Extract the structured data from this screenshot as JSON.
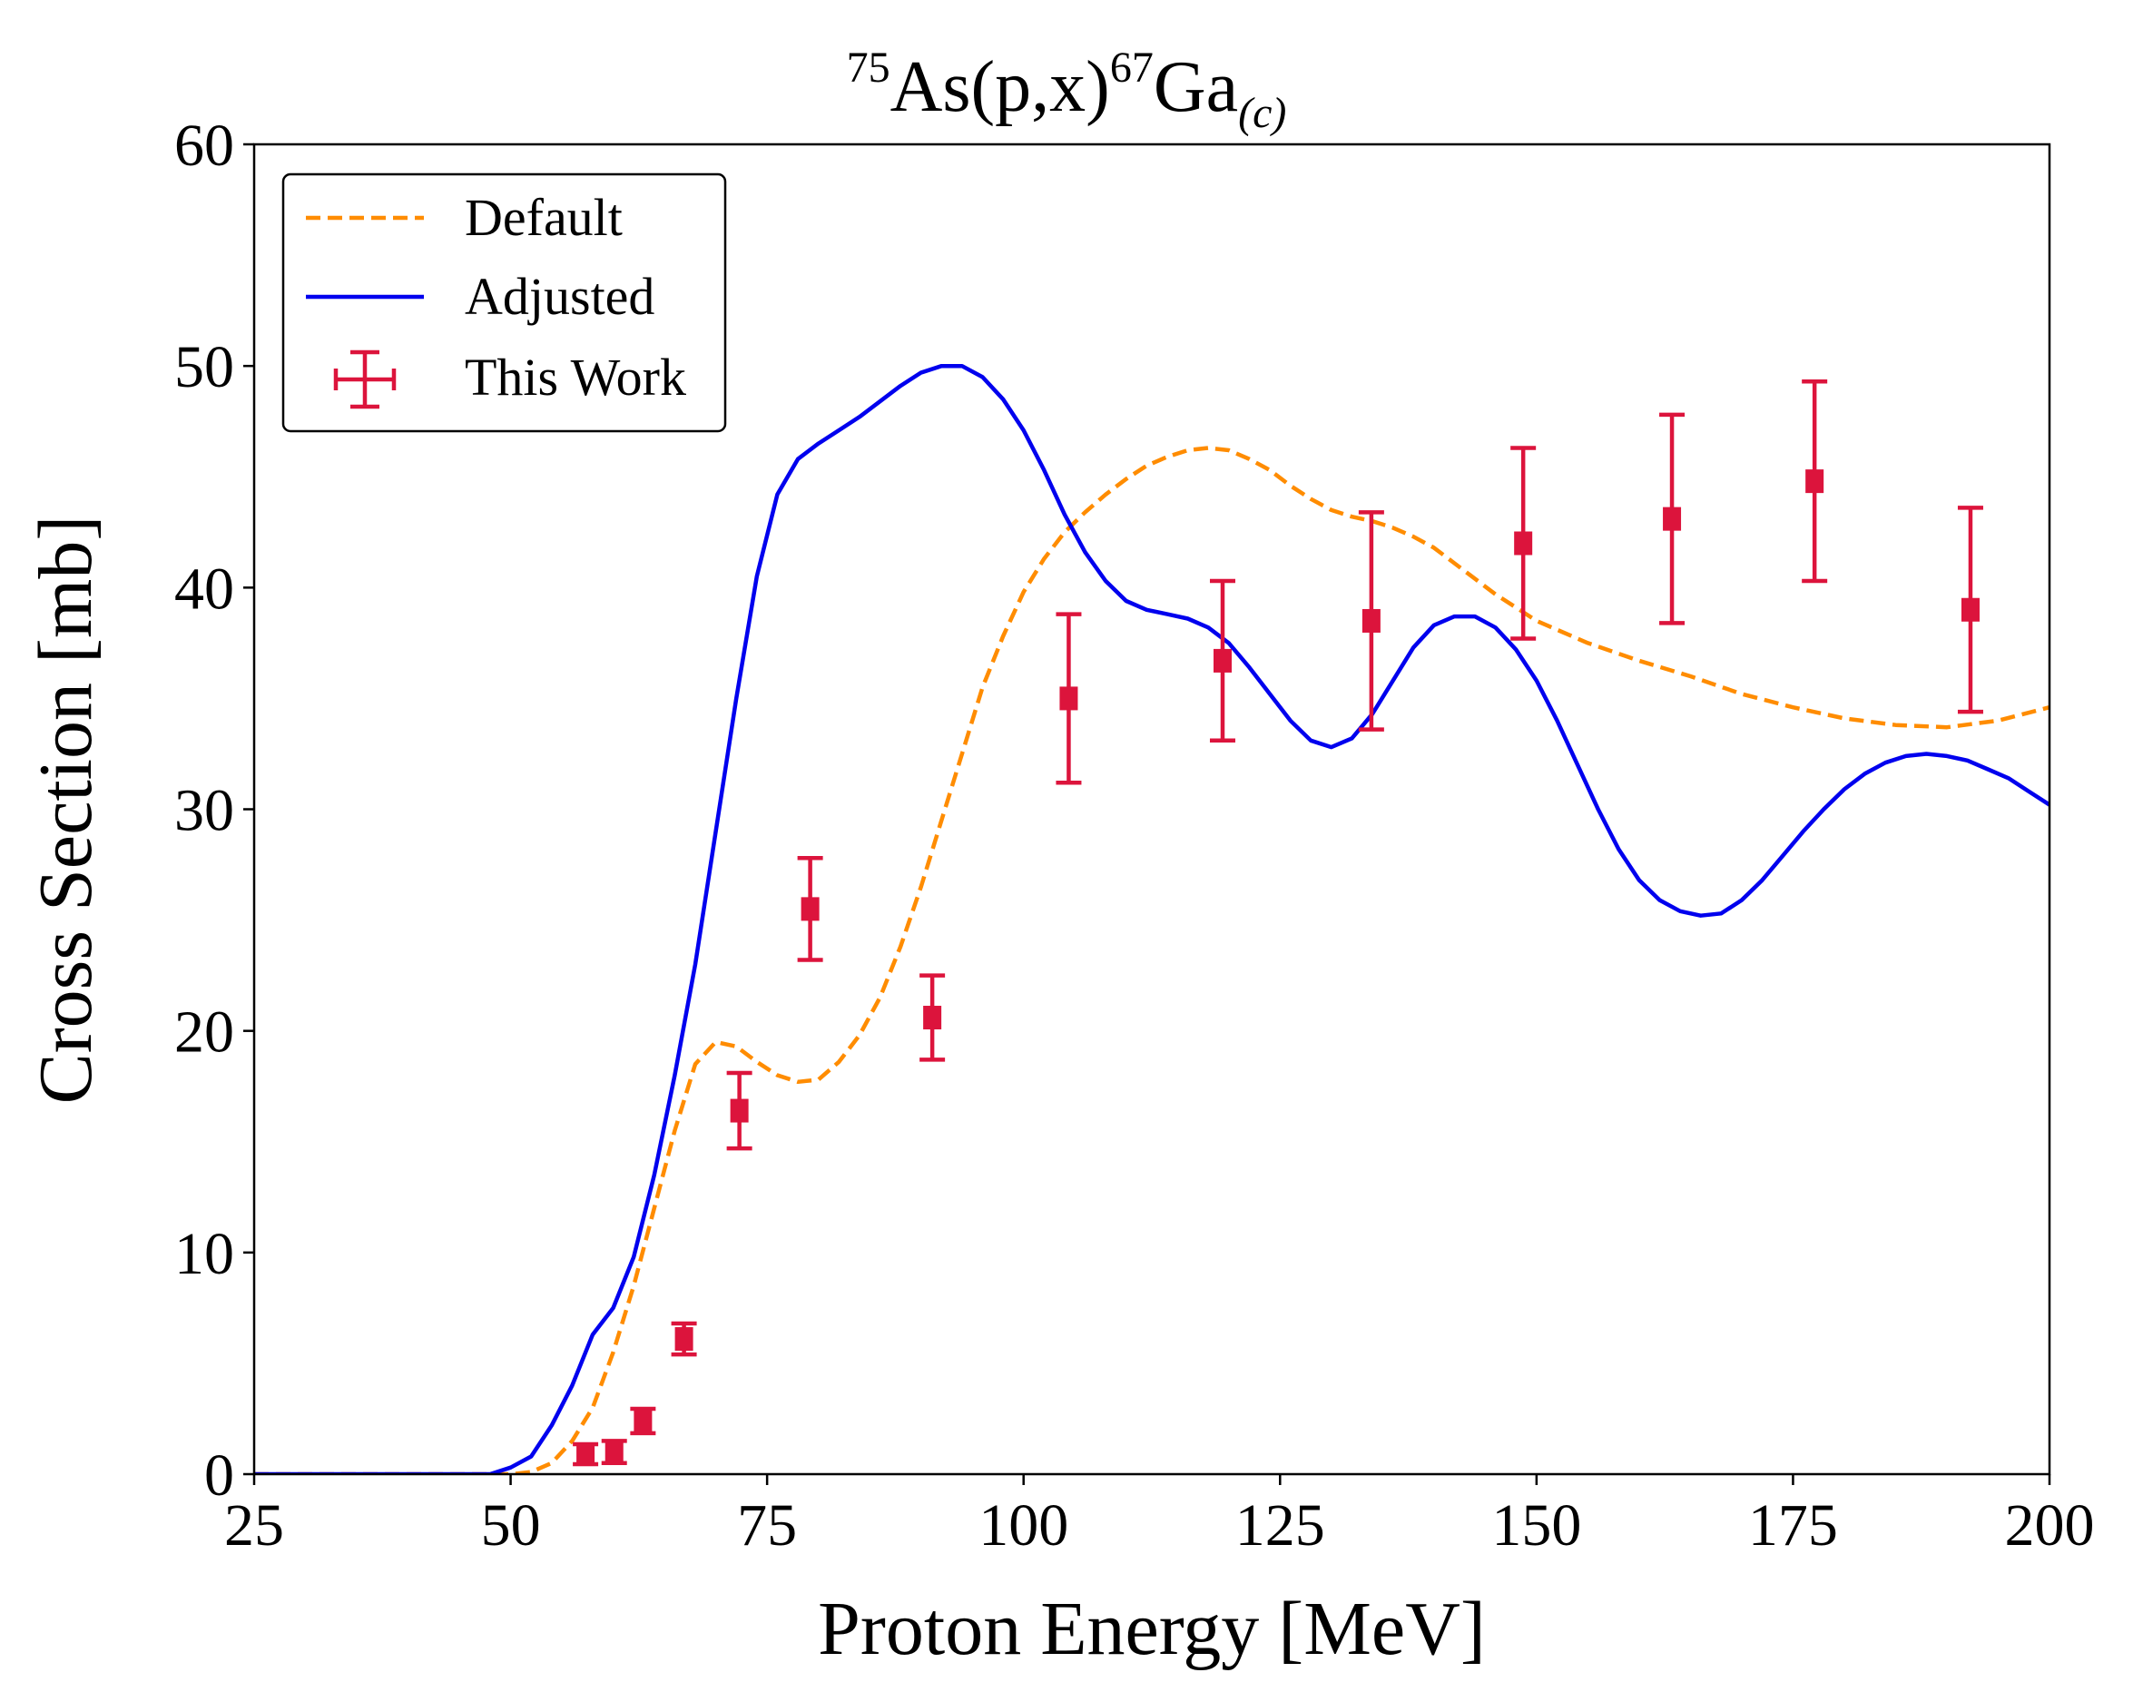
{
  "chart_data": {
    "type": "line",
    "title": {
      "sup1": "75",
      "main1": "As(p,x)",
      "sup2": "67",
      "main2": "Ga",
      "sub": "(c)"
    },
    "xlabel": "Proton Energy [MeV]",
    "ylabel": "Cross Section [mb]",
    "xlim": [
      25,
      200
    ],
    "ylim": [
      0,
      60
    ],
    "xticks": [
      25,
      50,
      75,
      100,
      125,
      150,
      175,
      200
    ],
    "yticks": [
      0,
      10,
      20,
      30,
      40,
      50,
      60
    ],
    "legend_position": "top-left",
    "series": [
      {
        "name": "Default",
        "style": "dashed",
        "color": "#ff8c00",
        "points": [
          [
            25,
            0
          ],
          [
            40,
            0
          ],
          [
            50,
            0
          ],
          [
            52,
            0.1
          ],
          [
            54,
            0.5
          ],
          [
            56,
            1.5
          ],
          [
            58,
            3
          ],
          [
            60,
            5.5
          ],
          [
            62,
            8.5
          ],
          [
            64,
            12
          ],
          [
            66,
            15.5
          ],
          [
            68,
            18.5
          ],
          [
            70,
            19.5
          ],
          [
            72,
            19.3
          ],
          [
            74,
            18.6
          ],
          [
            76,
            18
          ],
          [
            78,
            17.7
          ],
          [
            80,
            17.8
          ],
          [
            82,
            18.6
          ],
          [
            84,
            19.8
          ],
          [
            86,
            21.5
          ],
          [
            88,
            23.8
          ],
          [
            90,
            26.5
          ],
          [
            92,
            29.5
          ],
          [
            94,
            32.5
          ],
          [
            96,
            35.5
          ],
          [
            98,
            37.8
          ],
          [
            100,
            39.8
          ],
          [
            102,
            41.3
          ],
          [
            104,
            42.5
          ],
          [
            106,
            43.4
          ],
          [
            108,
            44.2
          ],
          [
            110,
            44.9
          ],
          [
            112,
            45.5
          ],
          [
            114,
            45.9
          ],
          [
            116,
            46.2
          ],
          [
            118,
            46.3
          ],
          [
            120,
            46.2
          ],
          [
            122,
            45.8
          ],
          [
            124,
            45.3
          ],
          [
            126,
            44.6
          ],
          [
            128,
            44
          ],
          [
            130,
            43.5
          ],
          [
            132,
            43.2
          ],
          [
            134,
            43
          ],
          [
            136,
            42.7
          ],
          [
            138,
            42.3
          ],
          [
            140,
            41.8
          ],
          [
            142,
            41.1
          ],
          [
            144,
            40.4
          ],
          [
            146,
            39.7
          ],
          [
            148,
            39.1
          ],
          [
            150,
            38.5
          ],
          [
            155,
            37.5
          ],
          [
            160,
            36.7
          ],
          [
            165,
            36
          ],
          [
            170,
            35.2
          ],
          [
            175,
            34.6
          ],
          [
            180,
            34.1
          ],
          [
            185,
            33.8
          ],
          [
            190,
            33.7
          ],
          [
            195,
            34
          ],
          [
            200,
            34.6
          ]
        ]
      },
      {
        "name": "Adjusted",
        "style": "solid",
        "color": "#0000ee",
        "points": [
          [
            25,
            0
          ],
          [
            40,
            0
          ],
          [
            48,
            0
          ],
          [
            50,
            0.3
          ],
          [
            52,
            0.8
          ],
          [
            54,
            2.2
          ],
          [
            56,
            4
          ],
          [
            58,
            6.3
          ],
          [
            60,
            7.5
          ],
          [
            62,
            9.8
          ],
          [
            64,
            13.5
          ],
          [
            66,
            18
          ],
          [
            68,
            23
          ],
          [
            70,
            29
          ],
          [
            72,
            35
          ],
          [
            74,
            40.5
          ],
          [
            76,
            44.2
          ],
          [
            78,
            45.8
          ],
          [
            80,
            46.5
          ],
          [
            82,
            47.1
          ],
          [
            84,
            47.7
          ],
          [
            86,
            48.4
          ],
          [
            88,
            49.1
          ],
          [
            90,
            49.7
          ],
          [
            92,
            50
          ],
          [
            94,
            50
          ],
          [
            96,
            49.5
          ],
          [
            98,
            48.5
          ],
          [
            100,
            47.1
          ],
          [
            102,
            45.3
          ],
          [
            104,
            43.3
          ],
          [
            106,
            41.6
          ],
          [
            108,
            40.3
          ],
          [
            110,
            39.4
          ],
          [
            112,
            39
          ],
          [
            114,
            38.8
          ],
          [
            116,
            38.6
          ],
          [
            118,
            38.2
          ],
          [
            120,
            37.5
          ],
          [
            122,
            36.4
          ],
          [
            124,
            35.2
          ],
          [
            126,
            34
          ],
          [
            128,
            33.1
          ],
          [
            130,
            32.8
          ],
          [
            132,
            33.2
          ],
          [
            134,
            34.3
          ],
          [
            136,
            35.8
          ],
          [
            138,
            37.3
          ],
          [
            140,
            38.3
          ],
          [
            142,
            38.7
          ],
          [
            144,
            38.7
          ],
          [
            146,
            38.2
          ],
          [
            148,
            37.2
          ],
          [
            150,
            35.8
          ],
          [
            152,
            34
          ],
          [
            154,
            32
          ],
          [
            156,
            30
          ],
          [
            158,
            28.2
          ],
          [
            160,
            26.8
          ],
          [
            162,
            25.9
          ],
          [
            164,
            25.4
          ],
          [
            166,
            25.2
          ],
          [
            168,
            25.3
          ],
          [
            170,
            25.9
          ],
          [
            172,
            26.8
          ],
          [
            174,
            27.9
          ],
          [
            176,
            29
          ],
          [
            178,
            30
          ],
          [
            180,
            30.9
          ],
          [
            182,
            31.6
          ],
          [
            184,
            32.1
          ],
          [
            186,
            32.4
          ],
          [
            188,
            32.5
          ],
          [
            190,
            32.4
          ],
          [
            192,
            32.2
          ],
          [
            194,
            31.8
          ],
          [
            196,
            31.4
          ],
          [
            198,
            30.8
          ],
          [
            200,
            30.2
          ]
        ]
      },
      {
        "name": "This Work",
        "style": "errorbar",
        "color": "#dc143c",
        "points": [
          {
            "x": 57.3,
            "y": 0.9,
            "yerr": 0.45,
            "xerr": 0.5
          },
          {
            "x": 60.1,
            "y": 1.0,
            "yerr": 0.5,
            "xerr": 0.5
          },
          {
            "x": 62.9,
            "y": 2.4,
            "yerr": 0.55,
            "xerr": 0.5
          },
          {
            "x": 66.9,
            "y": 6.1,
            "yerr": 0.7,
            "xerr": 0.5
          },
          {
            "x": 72.3,
            "y": 16.4,
            "yerr": 1.7,
            "xerr": 0.45
          },
          {
            "x": 79.2,
            "y": 25.5,
            "yerr": 2.3,
            "xerr": 0.4
          },
          {
            "x": 91.1,
            "y": 20.6,
            "yerr": 1.9,
            "xerr": 0.4
          },
          {
            "x": 104.4,
            "y": 35.0,
            "yerr": 3.8,
            "xerr": 0.4
          },
          {
            "x": 119.4,
            "y": 36.7,
            "yerr": 3.6,
            "xerr": 0.4
          },
          {
            "x": 133.9,
            "y": 38.5,
            "yerr": 4.9,
            "xerr": 0.35
          },
          {
            "x": 148.7,
            "y": 42.0,
            "yerr": 4.3,
            "xerr": 0.35
          },
          {
            "x": 163.2,
            "y": 43.1,
            "yerr": 4.7,
            "xerr": 0.35
          },
          {
            "x": 177.1,
            "y": 44.8,
            "yerr": 4.5,
            "xerr": 0.35
          },
          {
            "x": 192.3,
            "y": 39.0,
            "yerr": 4.6,
            "xerr": 0.35
          }
        ]
      }
    ]
  }
}
